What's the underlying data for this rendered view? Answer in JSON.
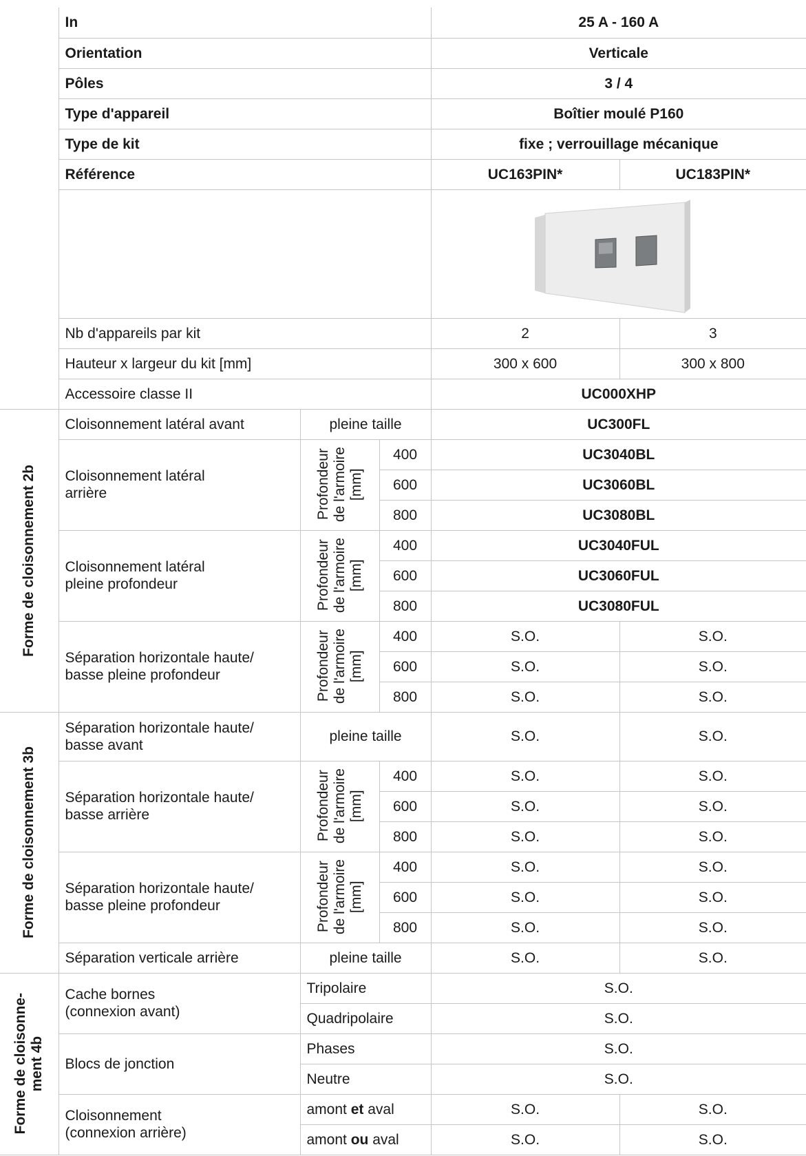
{
  "specs": [
    {
      "label": "In",
      "value": "25 A - 160 A"
    },
    {
      "label": "Orientation",
      "value": "Verticale"
    },
    {
      "label": "Pôles",
      "value": "3 / 4"
    },
    {
      "label": "Type d'appareil",
      "value": "Boîtier moulé P160"
    },
    {
      "label": "Type de kit",
      "value": "fixe ; verrouillage mécanique"
    },
    {
      "label": "Référence",
      "values": [
        "UC163PIN*",
        "UC183PIN*"
      ]
    }
  ],
  "details": [
    {
      "label": "Nb d'appareils par kit",
      "values": [
        2,
        3
      ]
    },
    {
      "label": "Hauteur x largeur du kit [mm]",
      "values": [
        "300 x 600",
        "300 x 800"
      ]
    },
    {
      "label": "Accessoire classe II",
      "value": "UC000XHP"
    }
  ],
  "groups": [
    {
      "title": [
        "Forme de cloisonnement 2b"
      ],
      "items": [
        {
          "label": [
            "Cloisonnement latéral avant"
          ],
          "sub": "pleine taille",
          "value": "UC300FL"
        },
        {
          "label": [
            "Cloisonnement latéral",
            "arrière"
          ],
          "sub": [
            "Profondeur",
            "de l'armoire",
            "[mm]"
          ],
          "rows": [
            {
              "depth": 400,
              "value": "UC3040BL"
            },
            {
              "depth": 600,
              "value": "UC3060BL"
            },
            {
              "depth": 800,
              "value": "UC3080BL"
            }
          ]
        },
        {
          "label": [
            "Cloisonnement latéral",
            "pleine profondeur"
          ],
          "sub": [
            "Profondeur",
            "de l'armoire",
            "[mm]"
          ],
          "rows": [
            {
              "depth": 400,
              "value": "UC3040FUL"
            },
            {
              "depth": 600,
              "value": "UC3060FUL"
            },
            {
              "depth": 800,
              "value": "UC3080FUL"
            }
          ]
        },
        {
          "label": [
            "Séparation horizontale haute/",
            "basse pleine profondeur"
          ],
          "sub": [
            "Profondeur",
            "de l'armoire",
            "[mm]"
          ],
          "rows": [
            {
              "depth": 400,
              "values": [
                "S.O.",
                "S.O."
              ]
            },
            {
              "depth": 600,
              "values": [
                "S.O.",
                "S.O."
              ]
            },
            {
              "depth": 800,
              "values": [
                "S.O.",
                "S.O."
              ]
            }
          ]
        }
      ]
    },
    {
      "title": [
        "Forme de cloisonnement 3b"
      ],
      "items": [
        {
          "label": [
            "Séparation horizontale haute/",
            "basse avant"
          ],
          "sub": "pleine taille",
          "values": [
            "S.O.",
            "S.O."
          ]
        },
        {
          "label": [
            "Séparation horizontale haute/",
            "basse arrière"
          ],
          "sub": [
            "Profondeur",
            "de l'armoire",
            "[mm]"
          ],
          "rows": [
            {
              "depth": 400,
              "values": [
                "S.O.",
                "S.O."
              ]
            },
            {
              "depth": 600,
              "values": [
                "S.O.",
                "S.O."
              ]
            },
            {
              "depth": 800,
              "values": [
                "S.O.",
                "S.O."
              ]
            }
          ]
        },
        {
          "label": [
            "Séparation horizontale haute/",
            "basse pleine profondeur"
          ],
          "sub": [
            "Profondeur",
            "de l'armoire",
            "[mm]"
          ],
          "rows": [
            {
              "depth": 400,
              "values": [
                "S.O.",
                "S.O."
              ]
            },
            {
              "depth": 600,
              "values": [
                "S.O.",
                "S.O."
              ]
            },
            {
              "depth": 800,
              "values": [
                "S.O.",
                "S.O."
              ]
            }
          ]
        },
        {
          "label": [
            "Séparation verticale arrière"
          ],
          "sub": "pleine taille",
          "values": [
            "S.O.",
            "S.O."
          ]
        }
      ]
    },
    {
      "title": [
        "Forme de cloisonne-",
        "ment 4b"
      ],
      "items": [
        {
          "label": [
            "Cache bornes",
            "(connexion avant)"
          ],
          "rows": [
            {
              "sub": [
                "Tripolaire"
              ],
              "value": "S.O."
            },
            {
              "sub": [
                "Quadripolaire"
              ],
              "value": "S.O."
            }
          ]
        },
        {
          "label": [
            "Blocs de jonction"
          ],
          "rows": [
            {
              "sub": [
                "Phases"
              ],
              "value": "S.O."
            },
            {
              "sub": [
                "Neutre"
              ],
              "value": "S.O."
            }
          ]
        },
        {
          "label": [
            "Cloisonnement",
            "(connexion arrière)"
          ],
          "rows": [
            {
              "sub": [
                "amont ",
                "et",
                " aval"
              ],
              "values": [
                "S.O.",
                "S.O."
              ]
            },
            {
              "sub": [
                "amont ",
                "ou",
                " aval"
              ],
              "values": [
                "S.O.",
                "S.O."
              ]
            }
          ]
        }
      ]
    }
  ]
}
